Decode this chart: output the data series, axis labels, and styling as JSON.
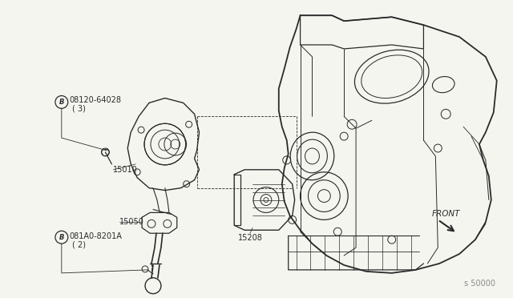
{
  "bg_color": "#f5f5f0",
  "line_color": "#2a2a2a",
  "label_color": "#2a2a2a",
  "diagram_number": "s 50000",
  "figsize": [
    6.4,
    3.72
  ],
  "dpi": 100,
  "labels": {
    "b1_part": "08120-64028",
    "b1_qty": "(3)",
    "part_15010": "15010",
    "part_15050": "15050",
    "b2_part": "081A0-8201A",
    "b2_qty": "(2)",
    "part_15208": "15208",
    "front": "FRONT"
  }
}
